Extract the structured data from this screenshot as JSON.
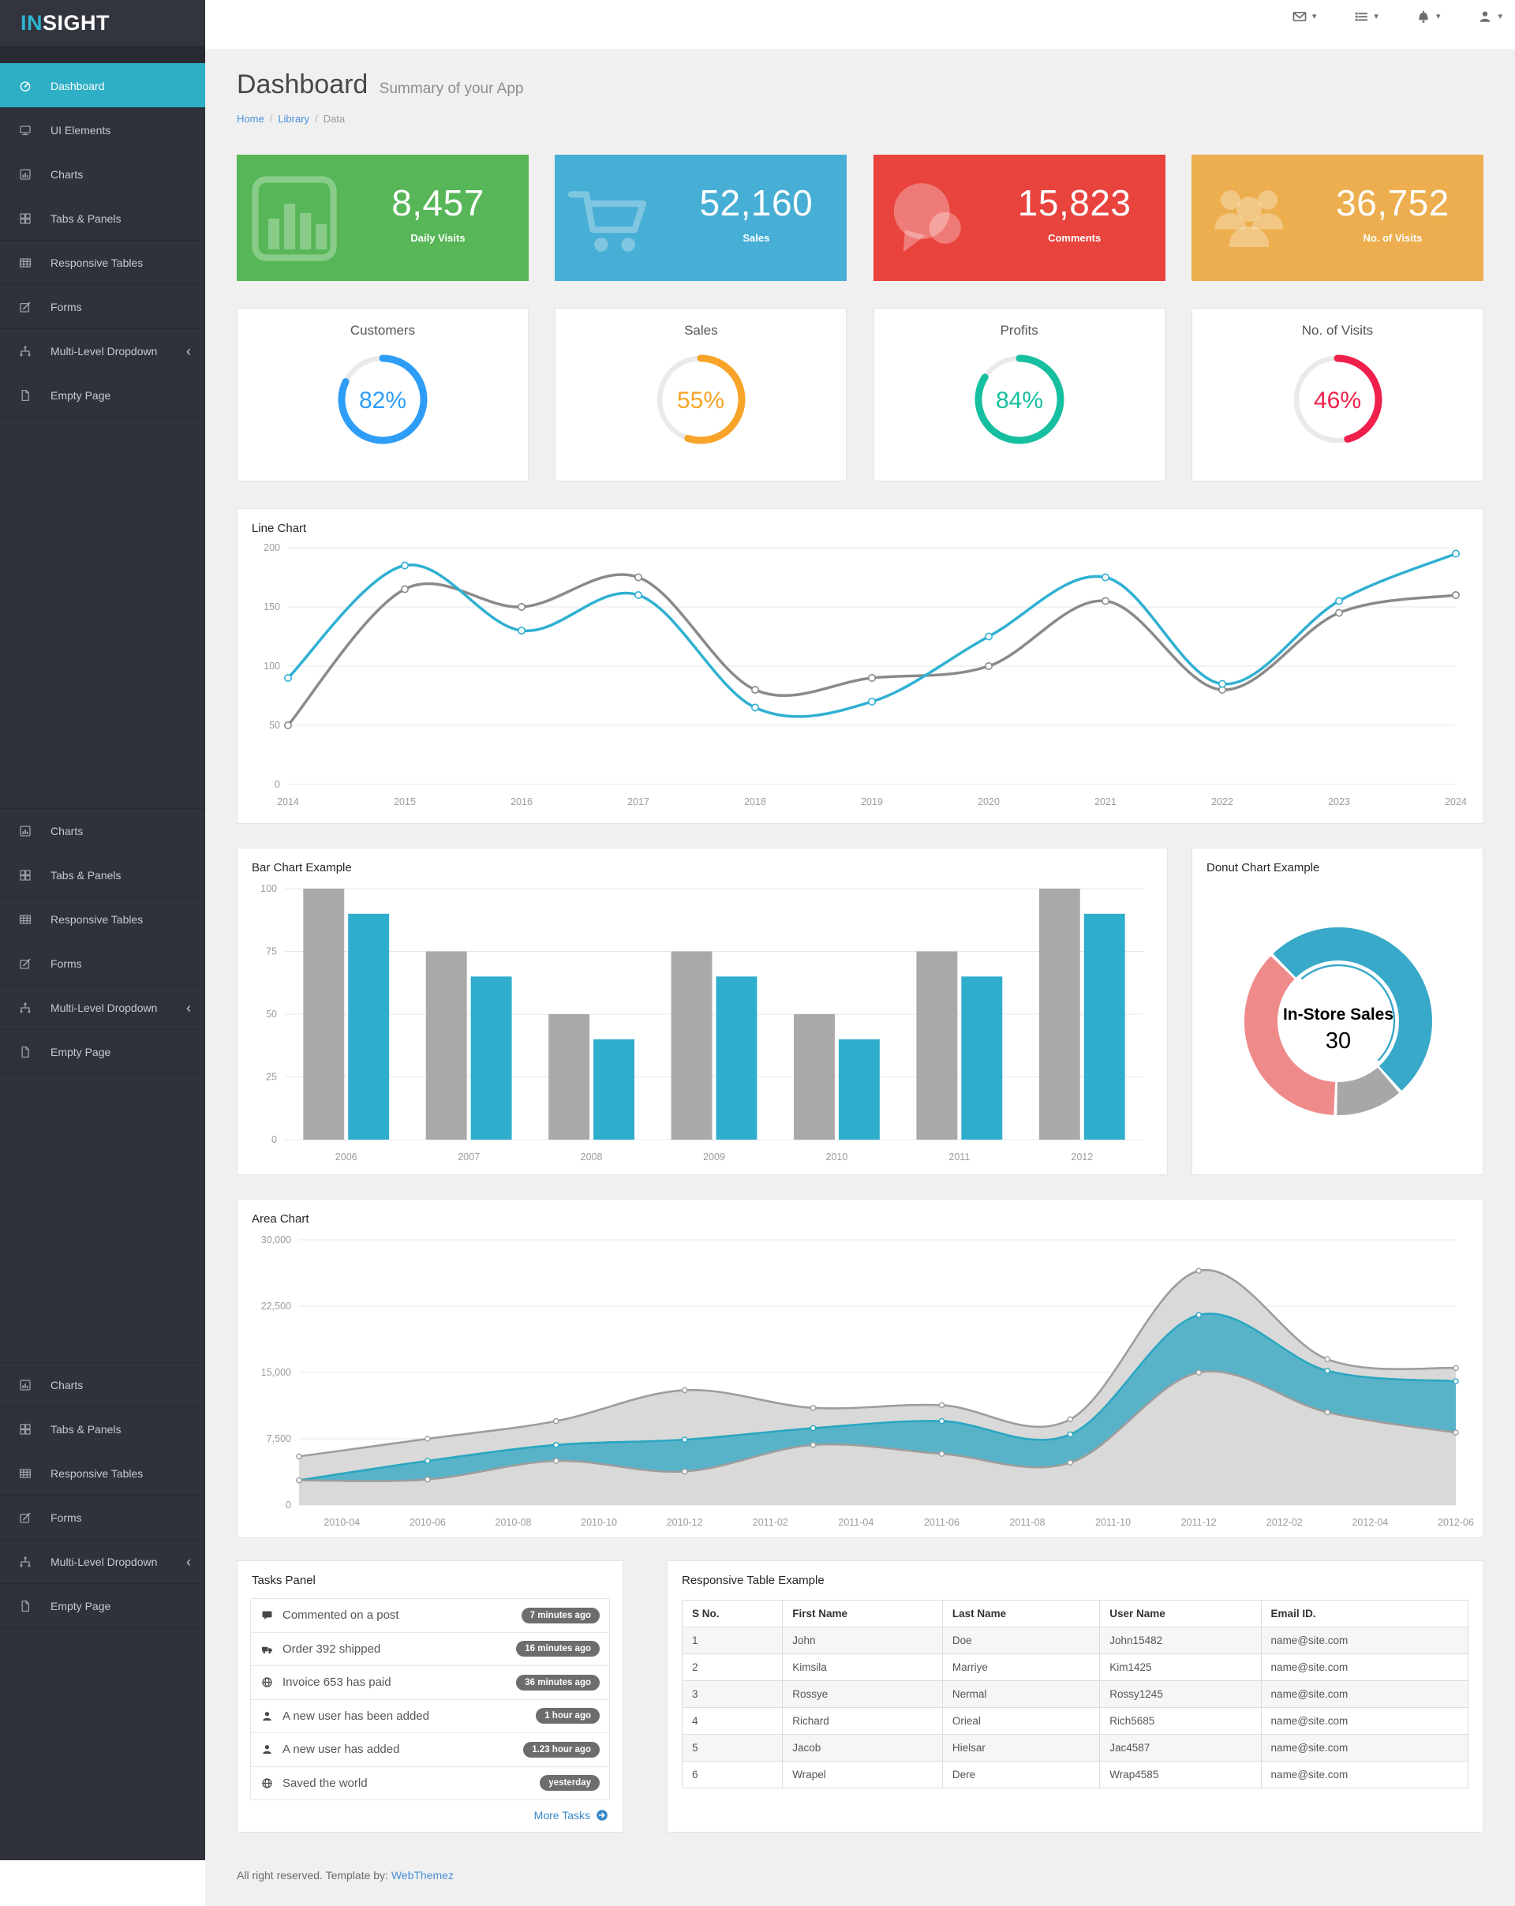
{
  "app": {
    "brand_accent": "IN",
    "brand_rest": "SIGHT"
  },
  "topbar": {
    "items": [
      {
        "icon": "envelope"
      },
      {
        "icon": "list"
      },
      {
        "icon": "bell"
      },
      {
        "icon": "user"
      }
    ]
  },
  "sidebar": {
    "active_color": "#2eafc6",
    "blocks": [
      {
        "items": [
          {
            "icon": "gauge",
            "label": "Dashboard",
            "active": true
          },
          {
            "icon": "monitor",
            "label": "UI Elements"
          },
          {
            "icon": "barchart",
            "label": "Charts"
          },
          {
            "icon": "grid",
            "label": "Tabs & Panels"
          },
          {
            "icon": "table",
            "label": "Responsive Tables"
          },
          {
            "icon": "edit",
            "label": "Forms"
          },
          {
            "icon": "sitemap",
            "label": "Multi-Level Dropdown",
            "chevron": true
          },
          {
            "icon": "file",
            "label": "Empty Page"
          }
        ]
      },
      {
        "items": [
          {
            "icon": "barchart",
            "label": "Charts"
          },
          {
            "icon": "grid",
            "label": "Tabs & Panels"
          },
          {
            "icon": "table",
            "label": "Responsive Tables"
          },
          {
            "icon": "edit",
            "label": "Forms"
          },
          {
            "icon": "sitemap",
            "label": "Multi-Level Dropdown",
            "chevron": true
          },
          {
            "icon": "file",
            "label": "Empty Page"
          }
        ]
      },
      {
        "items": [
          {
            "icon": "barchart",
            "label": "Charts"
          },
          {
            "icon": "grid",
            "label": "Tabs & Panels"
          },
          {
            "icon": "table",
            "label": "Responsive Tables"
          },
          {
            "icon": "edit",
            "label": "Forms"
          },
          {
            "icon": "sitemap",
            "label": "Multi-Level Dropdown",
            "chevron": true
          },
          {
            "icon": "file",
            "label": "Empty Page"
          }
        ]
      }
    ]
  },
  "header": {
    "title": "Dashboard",
    "subtitle": "Summary of your App",
    "breadcrumb": [
      {
        "label": "Home",
        "link": true
      },
      {
        "label": "Library",
        "link": true
      },
      {
        "label": "Data",
        "link": false
      }
    ]
  },
  "stat_cards": [
    {
      "value": "8,457",
      "label": "Daily Visits",
      "color": "#57b657",
      "icon": "chart"
    },
    {
      "value": "52,160",
      "label": "Sales",
      "color": "#47aed5",
      "icon": "cart"
    },
    {
      "value": "15,823",
      "label": "Comments",
      "color": "#e9433e",
      "icon": "comment"
    },
    {
      "value": "36,752",
      "label": "No. of Visits",
      "color": "#ecae4e",
      "icon": "users"
    }
  ],
  "progress_cards": [
    {
      "label": "Customers",
      "percent": 82,
      "color": "#2e9df7"
    },
    {
      "label": "Sales",
      "percent": 55,
      "color": "#f7a428"
    },
    {
      "label": "Profits",
      "percent": 84,
      "color": "#16bf9f"
    },
    {
      "label": "No. of Visits",
      "percent": 46,
      "color": "#f0204c"
    }
  ],
  "chart_data": [
    {
      "type": "line",
      "title": "Line Chart",
      "x": [
        "2014",
        "2015",
        "2016",
        "2017",
        "2018",
        "2019",
        "2020",
        "2021",
        "2022",
        "2023",
        "2024"
      ],
      "ylim": [
        0,
        200
      ],
      "yticks": [
        0,
        50,
        100,
        150,
        200
      ],
      "grid": true,
      "legend": "none",
      "series": [
        {
          "name": "gray",
          "color": "#8a8a8a",
          "values": [
            50,
            165,
            150,
            175,
            80,
            90,
            100,
            155,
            80,
            145,
            160
          ]
        },
        {
          "name": "blue",
          "color": "#2fb0d2",
          "values": [
            90,
            185,
            130,
            160,
            65,
            70,
            125,
            175,
            85,
            155,
            195
          ]
        }
      ]
    },
    {
      "type": "bar",
      "title": "Bar Chart Example",
      "categories": [
        "2006",
        "2007",
        "2008",
        "2009",
        "2010",
        "2011",
        "2012"
      ],
      "ylim": [
        0,
        100
      ],
      "yticks": [
        0,
        25,
        50,
        75,
        100
      ],
      "grid": true,
      "legend": "none",
      "series": [
        {
          "name": "gray",
          "color": "#a9a9a9",
          "values": [
            100,
            75,
            50,
            75,
            50,
            75,
            100
          ]
        },
        {
          "name": "blue",
          "color": "#2fadcd",
          "values": [
            90,
            65,
            40,
            65,
            40,
            65,
            90
          ]
        }
      ]
    },
    {
      "type": "pie",
      "title": "Donut Chart Example",
      "center_label": "In-Store Sales",
      "center_value": "30",
      "start_angle": 315,
      "slices": [
        {
          "percent": 51,
          "color": "#38a9c8",
          "selected": true
        },
        {
          "percent": 12,
          "color": "#a7a7a7"
        },
        {
          "percent": 37,
          "color": "#ef8a8a"
        }
      ]
    },
    {
      "type": "area",
      "title": "Area Chart",
      "ylim": [
        0,
        30000
      ],
      "yticks": [
        0,
        7500,
        15000,
        22500,
        30000
      ],
      "x_span": 27,
      "x_tick_labels": [
        "2010-04",
        "2010-06",
        "2010-08",
        "2010-10",
        "2010-12",
        "2011-02",
        "2011-04",
        "2011-06",
        "2011-08",
        "2011-10",
        "2011-12",
        "2012-02",
        "2012-04",
        "2012-06"
      ],
      "x_tick_offsets": [
        1,
        3,
        5,
        7,
        9,
        11,
        13,
        15,
        17,
        19,
        21,
        23,
        25,
        27
      ],
      "point_offsets": [
        0,
        3,
        6,
        9,
        12,
        15,
        18,
        21,
        24,
        27
      ],
      "series": [
        {
          "name": "gray-top",
          "color": "#9d9d9d",
          "fill": "#d9d9d9",
          "values": [
            5500,
            7500,
            9500,
            13000,
            11000,
            11300,
            9700,
            26500,
            16500,
            15500
          ]
        },
        {
          "name": "blue",
          "color": "#2aa6c0",
          "fill": "#58b3c9",
          "values": [
            2800,
            5000,
            6800,
            7400,
            8700,
            9500,
            8000,
            21500,
            15200,
            14000
          ]
        },
        {
          "name": "gray-bottom",
          "color": "#9d9d9d",
          "fill": "#d9d9d9",
          "values": [
            2800,
            2900,
            5000,
            3800,
            6800,
            5800,
            4800,
            15000,
            10500,
            8200
          ]
        }
      ]
    }
  ],
  "tasks_panel": {
    "title": "Tasks Panel",
    "more_label": "More Tasks",
    "items": [
      {
        "icon": "comment",
        "text": "Commented on a post",
        "time": "7 minutes ago"
      },
      {
        "icon": "truck",
        "text": "Order 392 shipped",
        "time": "16 minutes ago"
      },
      {
        "icon": "globe",
        "text": "Invoice 653 has paid",
        "time": "36 minutes ago"
      },
      {
        "icon": "user",
        "text": "A new user has been added",
        "time": "1 hour ago"
      },
      {
        "icon": "user",
        "text": "A new user has added",
        "time": "1.23 hour ago"
      },
      {
        "icon": "globe",
        "text": "Saved the world",
        "time": "yesterday"
      }
    ]
  },
  "table_panel": {
    "title": "Responsive Table Example",
    "columns": [
      "S No.",
      "First Name",
      "Last Name",
      "User Name",
      "Email ID."
    ],
    "rows": [
      [
        "1",
        "John",
        "Doe",
        "John15482",
        "name@site.com"
      ],
      [
        "2",
        "Kimsila",
        "Marriye",
        "Kim1425",
        "name@site.com"
      ],
      [
        "3",
        "Rossye",
        "Nermal",
        "Rossy1245",
        "name@site.com"
      ],
      [
        "4",
        "Richard",
        "Orieal",
        "Rich5685",
        "name@site.com"
      ],
      [
        "5",
        "Jacob",
        "Hielsar",
        "Jac4587",
        "name@site.com"
      ],
      [
        "6",
        "Wrapel",
        "Dere",
        "Wrap4585",
        "name@site.com"
      ]
    ]
  },
  "footer": {
    "text": "All right reserved. Template by: ",
    "link_label": "WebThemez"
  },
  "colors": {
    "sidebar_bg": "#2f323b",
    "sidebar_accent": "#2eafc6",
    "content_bg": "#f0f0f0",
    "link_blue": "#4a90d9",
    "badge_gray": "#6d6d6d",
    "axis_text": "#9b9b9b",
    "grid_line": "#e7e7e7"
  }
}
